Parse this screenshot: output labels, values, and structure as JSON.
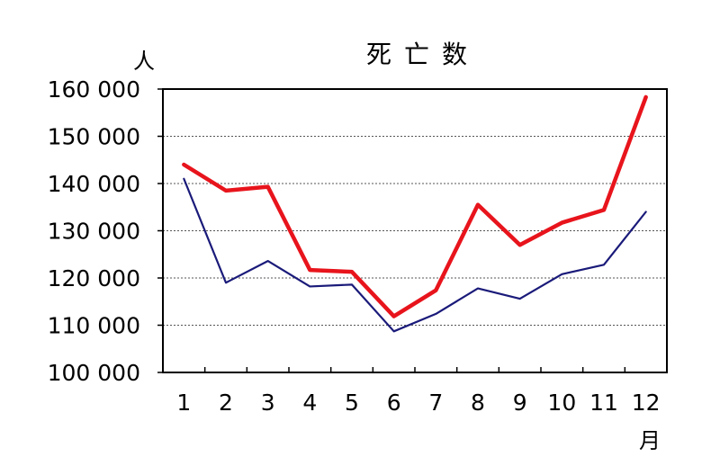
{
  "chart_data": {
    "type": "line",
    "title": "死亡数",
    "ylabel": "人",
    "xlabel": "月",
    "ylim": [
      100000,
      160000
    ],
    "yticks": [
      100000,
      110000,
      120000,
      130000,
      140000,
      150000,
      160000
    ],
    "ytick_labels": [
      "100 000",
      "110 000",
      "120 000",
      "130 000",
      "140 000",
      "150 000",
      "160 000"
    ],
    "categories": [
      "1",
      "2",
      "3",
      "4",
      "5",
      "6",
      "7",
      "8",
      "9",
      "10",
      "11",
      "12"
    ],
    "grid": "horizontal-dotted",
    "legend": "none",
    "series": [
      {
        "color": "#e8141c",
        "values": [
          144000,
          138500,
          139300,
          121700,
          121300,
          111900,
          117400,
          135500,
          127000,
          131700,
          134400,
          158300
        ]
      },
      {
        "color": "#1a1a7a",
        "values": [
          141000,
          119000,
          123600,
          118200,
          118600,
          108700,
          112400,
          117800,
          115600,
          120800,
          122800,
          134000
        ]
      }
    ]
  }
}
